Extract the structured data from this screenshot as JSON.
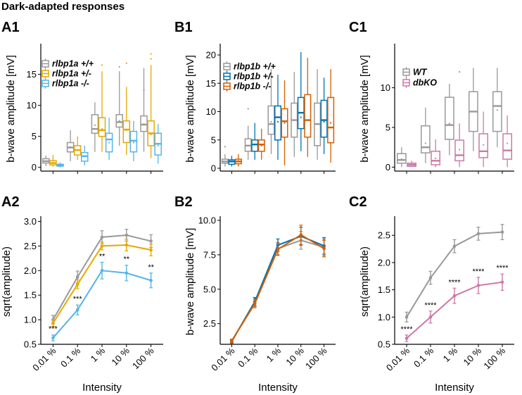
{
  "figure_title": "Dark-adapted responses",
  "colors": {
    "wt": "#999999",
    "het": "#E6A800",
    "ko_a": "#56B4E9",
    "ko_b1": "#0072B2",
    "ko_b2": "#D55E00",
    "dbko": "#CC79A7"
  },
  "panels": {
    "A1": {
      "label": "A1",
      "ylabel": "b-wave amplitude [mV]"
    },
    "B1": {
      "label": "B1",
      "ylabel": "b-wave amplitude [mV]"
    },
    "C1": {
      "label": "C1",
      "ylabel": "b-wave amplitude [mV]"
    },
    "A2": {
      "label": "A2",
      "ylabel": "sqrt(amplitude)",
      "xlabel": "Intensity"
    },
    "B2": {
      "label": "B2",
      "ylabel": "b-wave amplitude [mV]",
      "xlabel": "Intensity"
    },
    "C2": {
      "label": "C2",
      "ylabel": "sqrt(amplitude)",
      "xlabel": "Intensity"
    }
  },
  "chart_data": [
    {
      "id": "A1",
      "type": "box",
      "ylabel": "b-wave amplitude [mV]",
      "ylim": [
        -0.6,
        19.5
      ],
      "yticks": [
        0,
        5,
        10,
        15
      ],
      "categories": [
        "0.01 %",
        "0.1 %",
        "1 %",
        "10 %",
        "100 %"
      ],
      "legend_position": "top-left",
      "series": [
        {
          "name": "rlbp1a +/+",
          "color": "#999999",
          "boxes": [
            {
              "lo": 0.2,
              "q1": 0.7,
              "med": 1.0,
              "q3": 1.4,
              "hi": 1.9,
              "mean": 1.0,
              "out": []
            },
            {
              "lo": 1.0,
              "q1": 2.5,
              "med": 3.2,
              "q3": 4.0,
              "hi": 6.0,
              "mean": 3.3,
              "out": []
            },
            {
              "lo": 2.5,
              "q1": 5.5,
              "med": 6.2,
              "q3": 8.5,
              "hi": 10.5,
              "mean": 6.8,
              "out": []
            },
            {
              "lo": 3.5,
              "q1": 6.5,
              "med": 7.3,
              "q3": 8.5,
              "hi": 15.5,
              "mean": 7.5,
              "out": [
                16.2
              ]
            },
            {
              "lo": 2.5,
              "q1": 5.8,
              "med": 6.9,
              "q3": 8.3,
              "hi": 16.0,
              "mean": 7.0,
              "out": [
                12.5
              ]
            }
          ]
        },
        {
          "name": "rlbp1a +/-",
          "color": "#E6A800",
          "boxes": [
            {
              "lo": 0.1,
              "q1": 0.4,
              "med": 0.7,
              "q3": 1.1,
              "hi": 2.0,
              "mean": 0.8,
              "out": []
            },
            {
              "lo": 1.2,
              "q1": 2.0,
              "med": 2.8,
              "q3": 3.5,
              "hi": 5.0,
              "mean": 2.8,
              "out": []
            },
            {
              "lo": 2.5,
              "q1": 5.0,
              "med": 6.0,
              "q3": 8.0,
              "hi": 15.5,
              "mean": 6.2,
              "out": [
                16.5
              ]
            },
            {
              "lo": 2.0,
              "q1": 4.0,
              "med": 6.1,
              "q3": 7.5,
              "hi": 13.0,
              "mean": 6.0,
              "out": [
                16.8
              ]
            },
            {
              "lo": 1.5,
              "q1": 3.5,
              "med": 5.5,
              "q3": 7.5,
              "hi": 16.5,
              "mean": 5.3,
              "out": [
                17.5,
                18.3
              ]
            }
          ]
        },
        {
          "name": "rlbp1a -/-",
          "color": "#56B4E9",
          "boxes": [
            {
              "lo": 0.0,
              "q1": 0.2,
              "med": 0.3,
              "q3": 0.5,
              "hi": 0.8,
              "mean": 0.35,
              "out": []
            },
            {
              "lo": 0.3,
              "q1": 1.0,
              "med": 1.8,
              "q3": 2.4,
              "hi": 3.5,
              "mean": 1.8,
              "out": []
            },
            {
              "lo": 1.2,
              "q1": 2.5,
              "med": 4.5,
              "q3": 5.5,
              "hi": 8.0,
              "mean": 4.0,
              "out": []
            },
            {
              "lo": 1.0,
              "q1": 2.5,
              "med": 4.3,
              "q3": 5.8,
              "hi": 7.5,
              "mean": 4.0,
              "out": []
            },
            {
              "lo": 0.6,
              "q1": 2.0,
              "med": 3.8,
              "q3": 5.5,
              "hi": 7.0,
              "mean": 3.5,
              "out": []
            }
          ]
        }
      ]
    },
    {
      "id": "B1",
      "type": "box",
      "ylabel": "b-wave amplitude [mV]",
      "ylim": [
        -0.5,
        21.5
      ],
      "yticks": [
        0,
        5,
        10,
        15,
        20
      ],
      "categories": [
        "0.01 %",
        "0.1 %",
        "1 %",
        "10 %",
        "100 %"
      ],
      "legend_position": "top-left",
      "series": [
        {
          "name": "rlbp1b +/+",
          "color": "#999999",
          "boxes": [
            {
              "lo": 0.3,
              "q1": 0.9,
              "med": 1.2,
              "q3": 1.6,
              "hi": 2.5,
              "mean": 1.2,
              "out": [
                3.8
              ]
            },
            {
              "lo": 1.5,
              "q1": 3.0,
              "med": 4.0,
              "q3": 5.2,
              "hi": 7.5,
              "mean": 4.0,
              "out": [
                10.5
              ]
            },
            {
              "lo": 2.5,
              "q1": 6.0,
              "med": 7.8,
              "q3": 11.0,
              "hi": 17.5,
              "mean": 8.2,
              "out": []
            },
            {
              "lo": 2.0,
              "q1": 5.5,
              "med": 8.5,
              "q3": 11.5,
              "hi": 17.0,
              "mean": 8.5,
              "out": []
            },
            {
              "lo": 1.5,
              "q1": 4.0,
              "med": 7.8,
              "q3": 11.5,
              "hi": 17.5,
              "mean": 7.8,
              "out": []
            }
          ]
        },
        {
          "name": "rlbp1b +/-",
          "color": "#0072B2",
          "boxes": [
            {
              "lo": 0.3,
              "q1": 0.7,
              "med": 1.2,
              "q3": 1.5,
              "hi": 2.2,
              "mean": 1.2,
              "out": []
            },
            {
              "lo": 1.5,
              "q1": 3.0,
              "med": 4.2,
              "q3": 5.0,
              "hi": 8.0,
              "mean": 4.2,
              "out": []
            },
            {
              "lo": 1.5,
              "q1": 5.0,
              "med": 9.0,
              "q3": 11.0,
              "hi": 16.5,
              "mean": 8.2,
              "out": []
            },
            {
              "lo": 3.0,
              "q1": 7.0,
              "med": 9.8,
              "q3": 12.5,
              "hi": 20.5,
              "mean": 9.0,
              "out": []
            },
            {
              "lo": 2.5,
              "q1": 5.5,
              "med": 8.5,
              "q3": 12.0,
              "hi": 16.0,
              "mean": 8.2,
              "out": []
            }
          ]
        },
        {
          "name": "rlbp1b -/-",
          "color": "#D55E00",
          "boxes": [
            {
              "lo": 0.3,
              "q1": 0.8,
              "med": 1.2,
              "q3": 1.6,
              "hi": 2.5,
              "mean": 1.3,
              "out": []
            },
            {
              "lo": 1.5,
              "q1": 3.0,
              "med": 4.2,
              "q3": 5.0,
              "hi": 7.0,
              "mean": 4.0,
              "out": []
            },
            {
              "lo": 0.5,
              "q1": 5.5,
              "med": 8.3,
              "q3": 10.5,
              "hi": 15.5,
              "mean": 8.0,
              "out": []
            },
            {
              "lo": 2.0,
              "q1": 5.5,
              "med": 8.5,
              "q3": 13.0,
              "hi": 19.5,
              "mean": 8.5,
              "out": []
            },
            {
              "lo": 1.0,
              "q1": 4.5,
              "med": 7.2,
              "q3": 12.5,
              "hi": 17.5,
              "mean": 8.0,
              "out": []
            }
          ]
        }
      ]
    },
    {
      "id": "C1",
      "type": "box",
      "ylabel": "b-wave amplitude [mV]",
      "ylim": [
        -0.5,
        15.2
      ],
      "yticks": [
        0,
        5,
        10
      ],
      "categories": [
        "0.01 %",
        "0.1 %",
        "1 %",
        "10 %",
        "100 %"
      ],
      "legend_position": "top-left",
      "series": [
        {
          "name": "WT",
          "color": "#999999",
          "boxes": [
            {
              "lo": 0.0,
              "q1": 0.5,
              "med": 0.9,
              "q3": 1.7,
              "hi": 2.5,
              "mean": 1.0,
              "out": []
            },
            {
              "lo": 0.5,
              "q1": 1.8,
              "med": 2.5,
              "q3": 5.2,
              "hi": 7.5,
              "mean": 3.0,
              "out": []
            },
            {
              "lo": 1.5,
              "q1": 3.5,
              "med": 5.3,
              "q3": 8.8,
              "hi": 10.5,
              "mean": 5.5,
              "out": []
            },
            {
              "lo": 2.0,
              "q1": 4.5,
              "med": 7.0,
              "q3": 9.5,
              "hi": 12.5,
              "mean": 7.0,
              "out": []
            },
            {
              "lo": 2.5,
              "q1": 4.5,
              "med": 7.7,
              "q3": 9.5,
              "hi": 12.5,
              "mean": 7.2,
              "out": []
            }
          ]
        },
        {
          "name": "dbKO",
          "color": "#CC79A7",
          "boxes": [
            {
              "lo": 0.0,
              "q1": 0.1,
              "med": 0.3,
              "q3": 0.5,
              "hi": 0.8,
              "mean": 0.3,
              "out": []
            },
            {
              "lo": 0.0,
              "q1": 0.3,
              "med": 0.8,
              "q3": 2.0,
              "hi": 3.5,
              "mean": 1.1,
              "out": []
            },
            {
              "lo": 0.0,
              "q1": 0.8,
              "med": 1.5,
              "q3": 3.4,
              "hi": 5.5,
              "mean": 2.2,
              "out": [
                12.0
              ]
            },
            {
              "lo": 0.0,
              "q1": 1.2,
              "med": 2.0,
              "q3": 4.2,
              "hi": 7.0,
              "mean": 2.8,
              "out": []
            },
            {
              "lo": 0.0,
              "q1": 1.0,
              "med": 2.1,
              "q3": 4.2,
              "hi": 6.5,
              "mean": 3.0,
              "out": []
            }
          ]
        }
      ]
    },
    {
      "id": "A2",
      "type": "line",
      "xlabel": "Intensity",
      "ylabel": "sqrt(amplitude)",
      "categories": [
        "0.01 %",
        "0.1 %",
        "1 %",
        "10 %",
        "100 %"
      ],
      "ylim": [
        0.5,
        3.05
      ],
      "yticks": [
        0.5,
        1.0,
        1.5,
        2.0,
        2.5,
        3.0
      ],
      "series": [
        {
          "name": "rlbp1a +/+",
          "color": "#999999",
          "values": [
            1.0,
            1.87,
            2.68,
            2.72,
            2.6
          ],
          "err": [
            0.09,
            0.12,
            0.13,
            0.12,
            0.13
          ]
        },
        {
          "name": "rlbp1a +/-",
          "color": "#E6A800",
          "values": [
            0.93,
            1.72,
            2.5,
            2.52,
            2.42
          ],
          "err": [
            0.07,
            0.09,
            0.08,
            0.12,
            0.12
          ]
        },
        {
          "name": "rlbp1a -/-",
          "color": "#56B4E9",
          "values": [
            0.63,
            1.2,
            2.0,
            1.95,
            1.8
          ],
          "err": [
            0.06,
            0.1,
            0.17,
            0.16,
            0.15
          ]
        }
      ],
      "annotations": [
        "***",
        "***",
        "**",
        "**",
        "**"
      ]
    },
    {
      "id": "B2",
      "type": "line",
      "xlabel": "Intensity",
      "ylabel": "b-wave amplitude [mV]",
      "categories": [
        "0.01 %",
        "0.1 %",
        "1 %",
        "10 %",
        "100 %"
      ],
      "ylim": [
        1.0,
        10.1
      ],
      "yticks": [
        2.5,
        5.0,
        7.5,
        10.0
      ],
      "series": [
        {
          "name": "rlbp1b +/+",
          "color": "#999999",
          "values": [
            1.25,
            4.05,
            7.95,
            8.55,
            8.05
          ],
          "err": [
            0.12,
            0.3,
            0.45,
            0.65,
            0.6
          ]
        },
        {
          "name": "rlbp1b +/-",
          "color": "#0072B2",
          "values": [
            1.2,
            4.1,
            8.2,
            8.85,
            8.15
          ],
          "err": [
            0.12,
            0.3,
            0.45,
            0.65,
            0.6
          ]
        },
        {
          "name": "rlbp1b -/-",
          "color": "#D55E00",
          "values": [
            1.25,
            3.95,
            7.9,
            8.95,
            7.95
          ],
          "err": [
            0.12,
            0.3,
            0.45,
            0.7,
            0.6
          ]
        }
      ],
      "annotations": []
    },
    {
      "id": "C2",
      "type": "line",
      "xlabel": "Intensity",
      "ylabel": "sqrt(amplitude)",
      "categories": [
        "0.01 %",
        "0.1 %",
        "1 %",
        "10 %",
        "100 %"
      ],
      "ylim": [
        0.5,
        2.8
      ],
      "yticks": [
        0.5,
        1.0,
        1.5,
        2.0,
        2.5
      ],
      "series": [
        {
          "name": "WT",
          "color": "#999999",
          "values": [
            1.0,
            1.72,
            2.3,
            2.53,
            2.56
          ],
          "err": [
            0.09,
            0.12,
            0.12,
            0.12,
            0.14
          ]
        },
        {
          "name": "dbKO",
          "color": "#CC79A7",
          "values": [
            0.61,
            1.0,
            1.39,
            1.58,
            1.64
          ],
          "err": [
            0.06,
            0.11,
            0.14,
            0.15,
            0.15
          ]
        }
      ],
      "annotations": [
        "****",
        "****",
        "****",
        "****",
        "****"
      ]
    }
  ]
}
